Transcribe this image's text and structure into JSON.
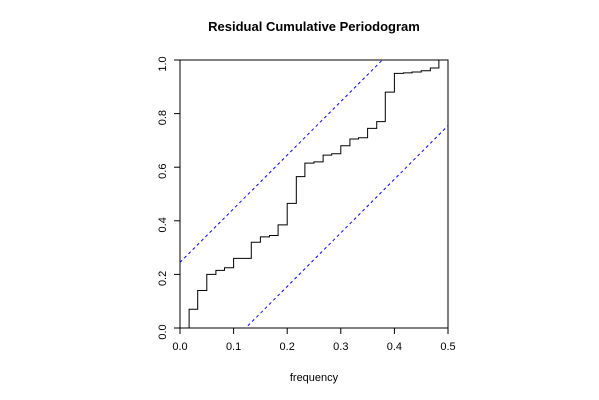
{
  "chart_data": {
    "type": "step",
    "title": "Residual Cumulative Periodogram",
    "x_label": "frequency",
    "x": [
      0.017,
      0.033,
      0.05,
      0.067,
      0.083,
      0.1,
      0.117,
      0.133,
      0.15,
      0.167,
      0.183,
      0.2,
      0.217,
      0.233,
      0.25,
      0.267,
      0.283,
      0.3,
      0.317,
      0.333,
      0.35,
      0.367,
      0.383,
      0.4,
      0.417,
      0.433,
      0.45,
      0.467,
      0.483,
      0.5
    ],
    "values": [
      0.07,
      0.14,
      0.2,
      0.215,
      0.225,
      0.26,
      0.26,
      0.32,
      0.34,
      0.345,
      0.385,
      0.465,
      0.565,
      0.615,
      0.62,
      0.645,
      0.65,
      0.68,
      0.705,
      0.71,
      0.745,
      0.77,
      0.88,
      0.95,
      0.952,
      0.955,
      0.96,
      0.97,
      1.0,
      1.0
    ],
    "color": "#000000",
    "bounds": [
      {
        "x": [
          0,
          0.5
        ],
        "values": [
          0.245,
          1.245
        ],
        "color": "#0000ff"
      },
      {
        "x": [
          0,
          0.5
        ],
        "values": [
          -0.245,
          0.755
        ],
        "color": "#0000ff"
      }
    ],
    "xlim": [
      0,
      0.5
    ],
    "ylim": [
      0,
      1
    ],
    "xticks": [
      {
        "value": 0,
        "label": "0.0"
      },
      0.1,
      0.2,
      0.3,
      0.4,
      0.5
    ],
    "yticks": [
      {
        "value": 0,
        "label": "0.0"
      },
      0.2,
      0.4,
      0.6,
      0.8,
      {
        "value": 1,
        "label": "1.0"
      }
    ]
  }
}
